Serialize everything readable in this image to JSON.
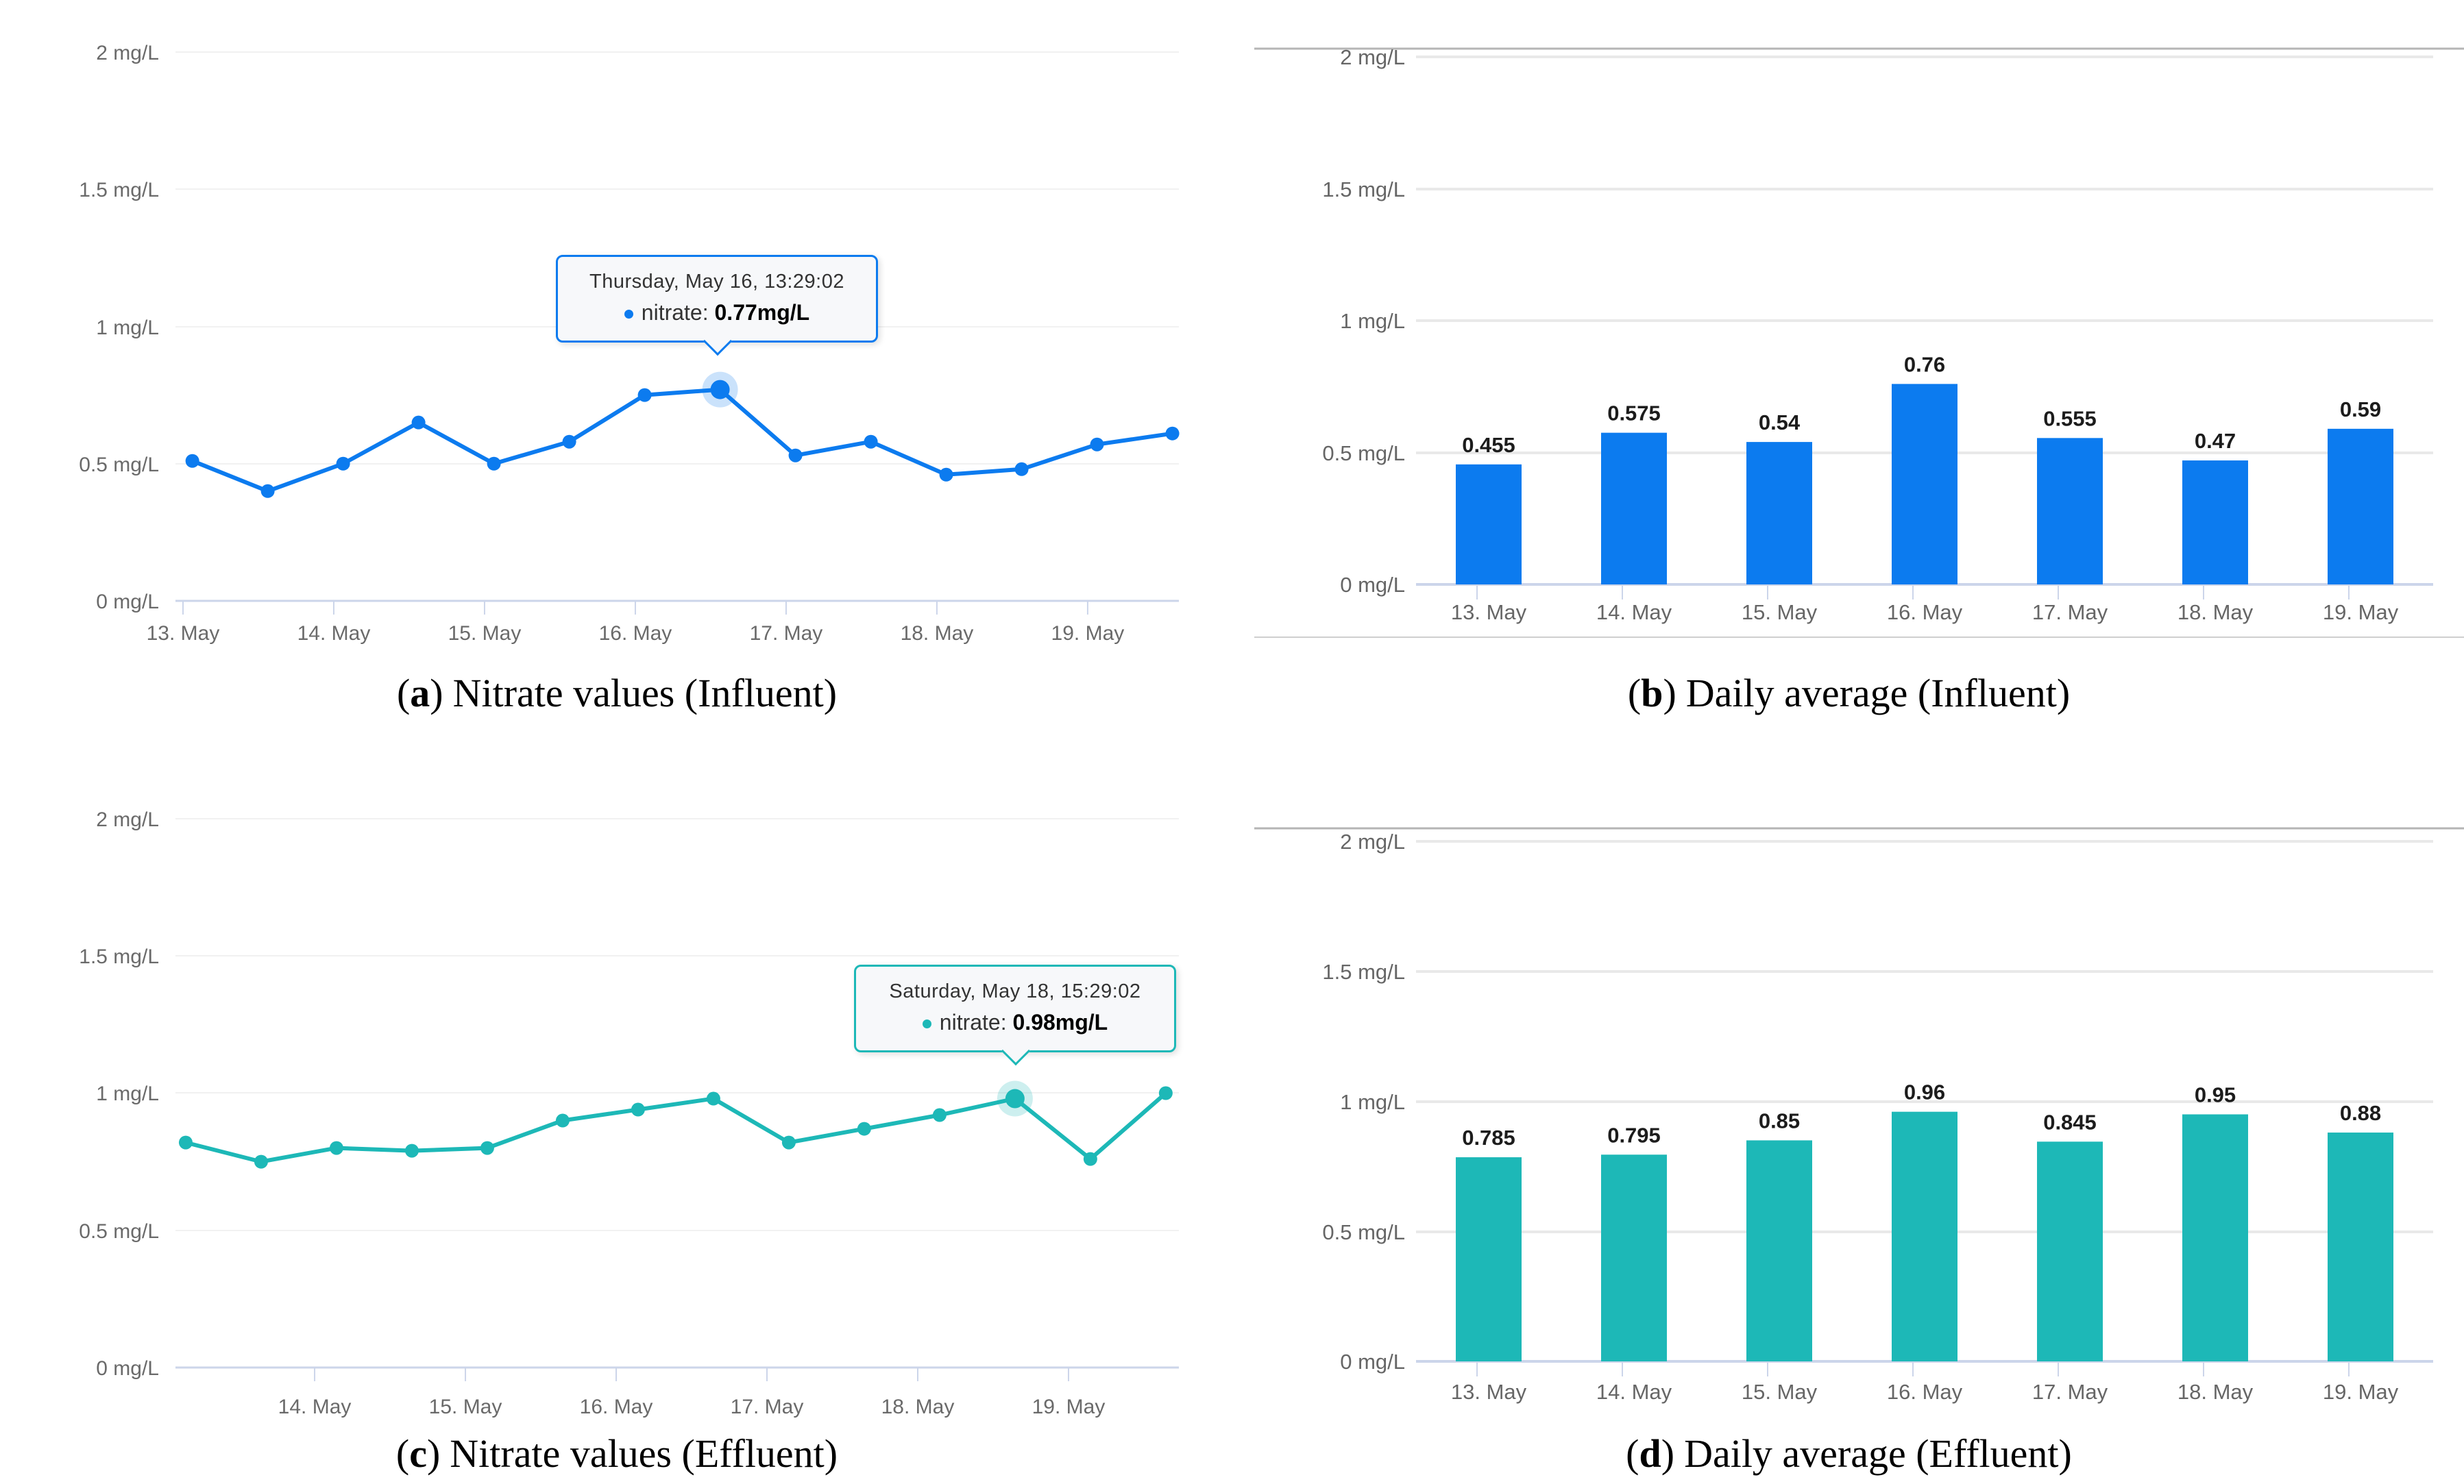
{
  "page": {
    "background": "#ffffff",
    "unit": "mg/L"
  },
  "chart_data": [
    {
      "id": "a",
      "type": "line",
      "series": "nitrate",
      "color": "#0c7bef",
      "unit": "mg/L",
      "caption": {
        "open": "(",
        "letter": "a",
        "close": ")",
        "text": "Nitrate values (Influent)"
      },
      "y_axis": {
        "labels": [
          "2 mg/L",
          "1.5 mg/L",
          "1 mg/L",
          "0.5 mg/L",
          "0 mg/L"
        ],
        "values": [
          2,
          1.5,
          1,
          0.5,
          0
        ],
        "range": [
          0,
          2
        ],
        "grid": true
      },
      "x_axis": {
        "ticks": [
          {
            "pos": 0,
            "label": "13. May"
          },
          {
            "pos": 1,
            "label": "14. May"
          },
          {
            "pos": 2,
            "label": "15. May"
          },
          {
            "pos": 3,
            "label": "16. May"
          },
          {
            "pos": 4,
            "label": "17. May"
          },
          {
            "pos": 5,
            "label": "18. May"
          },
          {
            "pos": 6,
            "label": "19. May"
          }
        ]
      },
      "x": [
        0.062,
        0.562,
        1.062,
        1.562,
        2.062,
        2.562,
        3.062,
        3.562,
        4.062,
        4.562,
        5.062,
        5.562,
        6.062,
        6.562
      ],
      "values": [
        0.51,
        0.4,
        0.5,
        0.65,
        0.5,
        0.58,
        0.75,
        0.77,
        0.53,
        0.58,
        0.46,
        0.48,
        0.57,
        0.61
      ],
      "highlight": {
        "index": 7,
        "tooltip_title": "Thursday, May 16, 13:29:02",
        "tooltip_label": "nitrate: ",
        "tooltip_value": "0.77mg/L"
      }
    },
    {
      "id": "b",
      "type": "bar",
      "series": "nitrate daily average",
      "color": "#0c7bef",
      "unit": "mg/L",
      "caption": {
        "open": "(",
        "letter": "b",
        "close": ")",
        "text": "Daily average (Influent)"
      },
      "y_axis": {
        "labels": [
          "2 mg/L",
          "1.5 mg/L",
          "1 mg/L",
          "0.5 mg/L",
          "0 mg/L"
        ],
        "values": [
          2,
          1.5,
          1,
          0.5,
          0
        ],
        "range": [
          0,
          2
        ],
        "grid": true
      },
      "categories": [
        "13. May",
        "14. May",
        "15. May",
        "16. May",
        "17. May",
        "18. May",
        "19. May"
      ],
      "values": [
        0.455,
        0.575,
        0.54,
        0.76,
        0.555,
        0.47,
        0.59
      ],
      "value_labels": [
        "0.455",
        "0.575",
        "0.54",
        "0.76",
        "0.555",
        "0.47",
        "0.59"
      ]
    },
    {
      "id": "c",
      "type": "line",
      "series": "nitrate",
      "color": "#1db8b7",
      "unit": "mg/L",
      "caption": {
        "open": "(",
        "letter": "c",
        "close": ")",
        "text": "Nitrate values (Effluent)"
      },
      "y_axis": {
        "labels": [
          "2 mg/L",
          "1.5 mg/L",
          "1 mg/L",
          "0.5 mg/L",
          "0 mg/L"
        ],
        "values": [
          2,
          1.5,
          1,
          0.5,
          0
        ],
        "range": [
          0,
          2
        ],
        "grid": true
      },
      "x_axis": {
        "ticks": [
          {
            "pos": 1,
            "label": "14. May"
          },
          {
            "pos": 2,
            "label": "15. May"
          },
          {
            "pos": 3,
            "label": "16. May"
          },
          {
            "pos": 4,
            "label": "17. May"
          },
          {
            "pos": 5,
            "label": "18. May"
          },
          {
            "pos": 6,
            "label": "19. May"
          }
        ]
      },
      "x": [
        0.145,
        0.645,
        1.145,
        1.645,
        2.145,
        2.645,
        3.145,
        3.645,
        4.145,
        4.645,
        5.145,
        5.645,
        6.145,
        6.645
      ],
      "values": [
        0.82,
        0.75,
        0.8,
        0.79,
        0.8,
        0.9,
        0.94,
        0.98,
        0.82,
        0.87,
        0.92,
        0.98,
        0.76,
        1.0
      ],
      "highlight": {
        "index": 11,
        "tooltip_title": "Saturday, May 18, 15:29:02",
        "tooltip_label": "nitrate: ",
        "tooltip_value": "0.98mg/L"
      }
    },
    {
      "id": "d",
      "type": "bar",
      "series": "nitrate daily average",
      "color": "#1db8b7",
      "unit": "mg/L",
      "caption": {
        "open": "(",
        "letter": "d",
        "close": ")",
        "text": "Daily average (Effluent)"
      },
      "y_axis": {
        "labels": [
          "2 mg/L",
          "1.5 mg/L",
          "1 mg/L",
          "0.5 mg/L",
          "0 mg/L"
        ],
        "values": [
          2,
          1.5,
          1,
          0.5,
          0
        ],
        "range": [
          0,
          2
        ],
        "grid": true
      },
      "categories": [
        "13. May",
        "14. May",
        "15. May",
        "16. May",
        "17. May",
        "18. May",
        "19. May"
      ],
      "values": [
        0.785,
        0.795,
        0.85,
        0.96,
        0.845,
        0.95,
        0.88
      ],
      "value_labels": [
        "0.785",
        "0.795",
        "0.85",
        "0.96",
        "0.845",
        "0.95",
        "0.88"
      ]
    }
  ]
}
